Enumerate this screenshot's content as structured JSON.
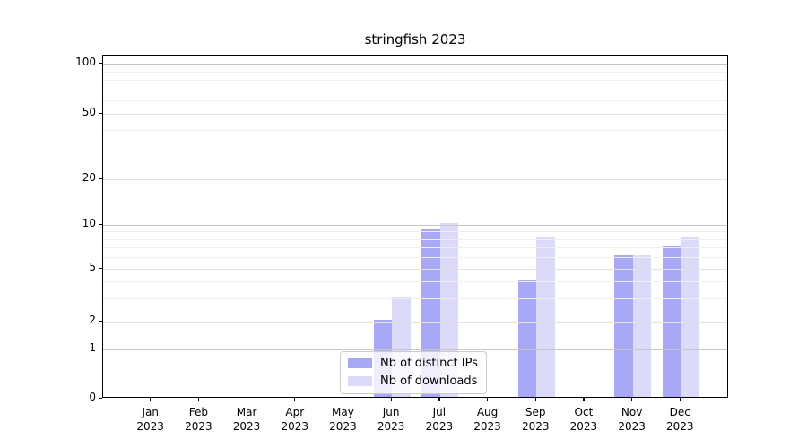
{
  "title": "stringfish 2023",
  "chart_data": {
    "type": "bar",
    "title": "stringfish 2023",
    "categories": [
      "Jan",
      "Feb",
      "Mar",
      "Apr",
      "May",
      "Jun",
      "Jul",
      "Aug",
      "Sep",
      "Oct",
      "Nov",
      "Dec"
    ],
    "year_label": "2023",
    "series": [
      {
        "name": "Nb of distinct IPs",
        "color": "#a8a8f7",
        "values": [
          0,
          0,
          0,
          0,
          0,
          2,
          9,
          0,
          4,
          0,
          6,
          7
        ]
      },
      {
        "name": "Nb of downloads",
        "color": "#dbdbf9",
        "values": [
          0,
          0,
          0,
          0,
          0,
          3,
          10,
          0,
          8,
          0,
          6,
          8
        ]
      }
    ],
    "xlabel": "",
    "ylabel": "",
    "yscale": "symlog",
    "ylim": [
      0,
      110
    ],
    "yticks": [
      0,
      1,
      2,
      5,
      10,
      20,
      50,
      100
    ],
    "major_gridlines": [
      1,
      10,
      100
    ],
    "mid_gridlines": [
      2,
      5,
      20,
      50
    ],
    "minor_gridlines": [
      3,
      4,
      6,
      7,
      8,
      9,
      30,
      40,
      60,
      70,
      80,
      90
    ],
    "grid": "horizontal major+minor",
    "legend_position": "lower-center",
    "background": "#ffffff"
  }
}
